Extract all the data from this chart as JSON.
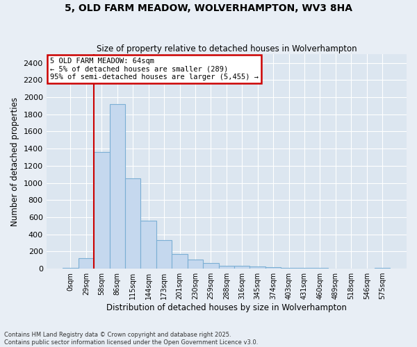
{
  "title_line1": "5, OLD FARM MEADOW, WOLVERHAMPTON, WV3 8HA",
  "title_line2": "Size of property relative to detached houses in Wolverhampton",
  "xlabel": "Distribution of detached houses by size in Wolverhampton",
  "ylabel": "Number of detached properties",
  "footer_line1": "Contains HM Land Registry data © Crown copyright and database right 2025.",
  "footer_line2": "Contains public sector information licensed under the Open Government Licence v3.0.",
  "categories": [
    "0sqm",
    "29sqm",
    "58sqm",
    "86sqm",
    "115sqm",
    "144sqm",
    "173sqm",
    "201sqm",
    "230sqm",
    "259sqm",
    "288sqm",
    "316sqm",
    "345sqm",
    "374sqm",
    "403sqm",
    "431sqm",
    "460sqm",
    "489sqm",
    "518sqm",
    "546sqm",
    "575sqm"
  ],
  "values": [
    10,
    120,
    1360,
    1920,
    1055,
    560,
    335,
    170,
    105,
    65,
    35,
    30,
    25,
    20,
    12,
    8,
    5,
    4,
    3,
    2,
    10
  ],
  "bar_color": "#c5d8ee",
  "bar_edge_color": "#7bafd4",
  "fig_bg_color": "#e8eef5",
  "ax_bg_color": "#dce6f0",
  "grid_color": "#ffffff",
  "vline_color": "#cc0000",
  "annotation_text": "5 OLD FARM MEADOW: 64sqm\n← 5% of detached houses are smaller (289)\n95% of semi-detached houses are larger (5,455) →",
  "annotation_box_color": "#cc0000",
  "ylim": [
    0,
    2500
  ],
  "yticks": [
    0,
    200,
    400,
    600,
    800,
    1000,
    1200,
    1400,
    1600,
    1800,
    2000,
    2200,
    2400
  ],
  "vline_bar_idx": 2
}
